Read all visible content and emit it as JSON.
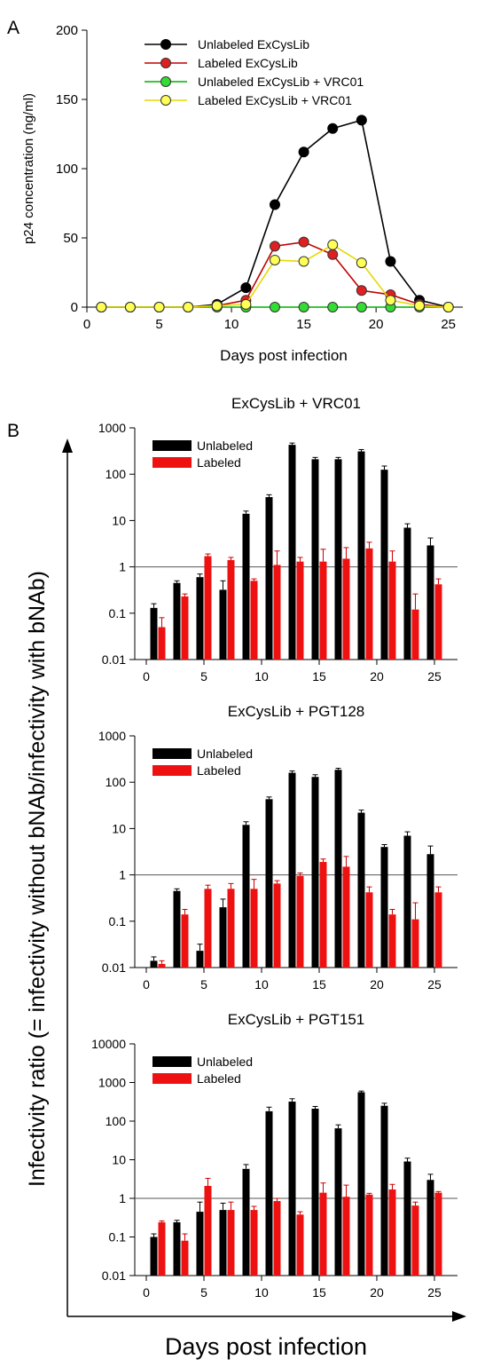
{
  "panel_labels": {
    "a": "A",
    "b": "B"
  },
  "shared": {
    "ylabel": "Infectivity ratio (= infectivity without bNAb/infectivity with bNAb)",
    "xlabel": "Days post infection"
  },
  "chart_data": [
    {
      "id": "A",
      "type": "line",
      "title": "",
      "xlabel": "Days post infection",
      "ylabel": "p24 concentration (ng/ml)",
      "xlim": [
        0,
        26
      ],
      "ylim": [
        0,
        200
      ],
      "xticks": [
        0,
        5,
        10,
        15,
        20,
        25
      ],
      "yticks": [
        0,
        50,
        100,
        150,
        200
      ],
      "legend": "top-left",
      "x": [
        1,
        3,
        5,
        7,
        9,
        11,
        13,
        15,
        17,
        19,
        21,
        23,
        25
      ],
      "series": [
        {
          "name": "Unlabeled ExCysLib",
          "color": "#000000",
          "fill": "#000000",
          "values": [
            0,
            0,
            0,
            0,
            2,
            14,
            74,
            112,
            129,
            135,
            33,
            5,
            0
          ]
        },
        {
          "name": "Labeled ExCysLib",
          "color": "#c00000",
          "fill": "#e02020",
          "values": [
            0,
            0,
            0,
            0,
            1,
            5,
            44,
            47,
            38,
            12,
            9,
            2,
            0
          ]
        },
        {
          "name": "Unlabeled ExCysLib + VRC01",
          "color": "#00b000",
          "fill": "#33dd33",
          "values": [
            0,
            0,
            0,
            0,
            0,
            0,
            0,
            0,
            0,
            0,
            0,
            0,
            0
          ]
        },
        {
          "name": "Labeled ExCysLib + VRC01",
          "color": "#e6d800",
          "fill": "#ffff55",
          "values": [
            0,
            0,
            0,
            0,
            1,
            2,
            34,
            33,
            45,
            32,
            5,
            1,
            0
          ]
        }
      ]
    },
    {
      "id": "B1",
      "type": "bar",
      "title": "ExCysLib + VRC01",
      "yscale": "log",
      "ylim": [
        0.01,
        1000
      ],
      "yticks": [
        0.01,
        0.1,
        1,
        10,
        100,
        1000
      ],
      "ytick_labels": [
        "0.01",
        "0.1",
        "1",
        "10",
        "100",
        "1000"
      ],
      "xlim": [
        -1,
        27
      ],
      "xticks": [
        0,
        5,
        10,
        15,
        20,
        25
      ],
      "legend": "top-left",
      "reference_line": 1,
      "x": [
        1,
        3,
        5,
        7,
        9,
        11,
        13,
        15,
        17,
        19,
        21,
        23,
        25
      ],
      "series": [
        {
          "name": "Unlabeled",
          "color": "#000000",
          "values": [
            0.13,
            0.45,
            0.6,
            0.32,
            14,
            32,
            430,
            210,
            210,
            310,
            125,
            7,
            2.9
          ],
          "errors": [
            0.16,
            0.5,
            0.7,
            0.5,
            16,
            36,
            470,
            230,
            230,
            340,
            150,
            8.5,
            4.2
          ]
        },
        {
          "name": "Labeled",
          "color": "#ee1111",
          "values": [
            0.05,
            0.23,
            1.7,
            1.4,
            0.5,
            1.1,
            1.3,
            1.3,
            1.5,
            2.5,
            1.3,
            0.12,
            0.42
          ]
        },
        {
          "name": "Labeled error",
          "color": "#ee1111",
          "values": [
            0.08,
            0.26,
            1.9,
            1.6,
            0.55,
            2.2,
            1.6,
            2.4,
            2.6,
            3.4,
            2.2,
            0.26,
            0.55
          ]
        }
      ]
    },
    {
      "id": "B2",
      "type": "bar",
      "title": "ExCysLib + PGT128",
      "yscale": "log",
      "ylim": [
        0.01,
        1000
      ],
      "yticks": [
        0.01,
        0.1,
        1,
        10,
        100,
        1000
      ],
      "ytick_labels": [
        "0.01",
        "0.1",
        "1",
        "10",
        "100",
        "1000"
      ],
      "xlim": [
        -1,
        27
      ],
      "xticks": [
        0,
        5,
        10,
        15,
        20,
        25
      ],
      "legend": "top-left",
      "reference_line": 1,
      "x": [
        1,
        3,
        5,
        7,
        9,
        11,
        13,
        15,
        17,
        19,
        21,
        23,
        25
      ],
      "series": [
        {
          "name": "Unlabeled",
          "color": "#000000",
          "values": [
            0.014,
            0.45,
            0.023,
            0.2,
            12,
            43,
            160,
            130,
            185,
            22,
            4,
            7,
            2.8
          ],
          "errors": [
            0.017,
            0.5,
            0.032,
            0.3,
            14,
            48,
            175,
            145,
            200,
            25,
            4.5,
            8.5,
            4.2
          ]
        },
        {
          "name": "Labeled",
          "color": "#ee1111",
          "values": [
            0.012,
            0.14,
            0.5,
            0.5,
            0.5,
            0.65,
            0.95,
            1.9,
            1.5,
            0.42,
            0.14,
            0.11,
            0.42
          ]
        },
        {
          "name": "Labeled error",
          "color": "#ee1111",
          "values": [
            0.014,
            0.18,
            0.6,
            0.65,
            0.8,
            0.75,
            1.1,
            2.2,
            2.5,
            0.55,
            0.18,
            0.25,
            0.55
          ]
        }
      ]
    },
    {
      "id": "B3",
      "type": "bar",
      "title": "ExCysLib + PGT151",
      "yscale": "log",
      "ylim": [
        0.01,
        10000
      ],
      "yticks": [
        0.01,
        0.1,
        1,
        10,
        100,
        1000,
        10000
      ],
      "ytick_labels": [
        "0.01",
        "0.1",
        "1",
        "10",
        "100",
        "1000",
        "10000"
      ],
      "xlim": [
        -1,
        27
      ],
      "xticks": [
        0,
        5,
        10,
        15,
        20,
        25
      ],
      "legend": "top-left",
      "reference_line": 1,
      "x": [
        1,
        3,
        5,
        7,
        9,
        11,
        13,
        15,
        17,
        19,
        21,
        23,
        25
      ],
      "series": [
        {
          "name": "Unlabeled",
          "color": "#000000",
          "values": [
            0.1,
            0.24,
            0.45,
            0.5,
            5.8,
            180,
            320,
            210,
            65,
            560,
            250,
            9,
            3
          ],
          "errors": [
            0.12,
            0.27,
            0.8,
            0.75,
            7.5,
            230,
            380,
            240,
            80,
            600,
            290,
            11,
            4.2
          ]
        },
        {
          "name": "Labeled",
          "color": "#ee1111",
          "values": [
            0.24,
            0.08,
            2.1,
            0.5,
            0.5,
            0.85,
            0.38,
            1.4,
            1.1,
            1.25,
            1.7,
            0.65,
            1.4
          ]
        },
        {
          "name": "Labeled error",
          "color": "#ee1111",
          "values": [
            0.26,
            0.12,
            3.3,
            0.8,
            0.62,
            1.0,
            0.45,
            2.5,
            2.2,
            1.35,
            2.3,
            0.8,
            1.5
          ]
        }
      ]
    }
  ]
}
